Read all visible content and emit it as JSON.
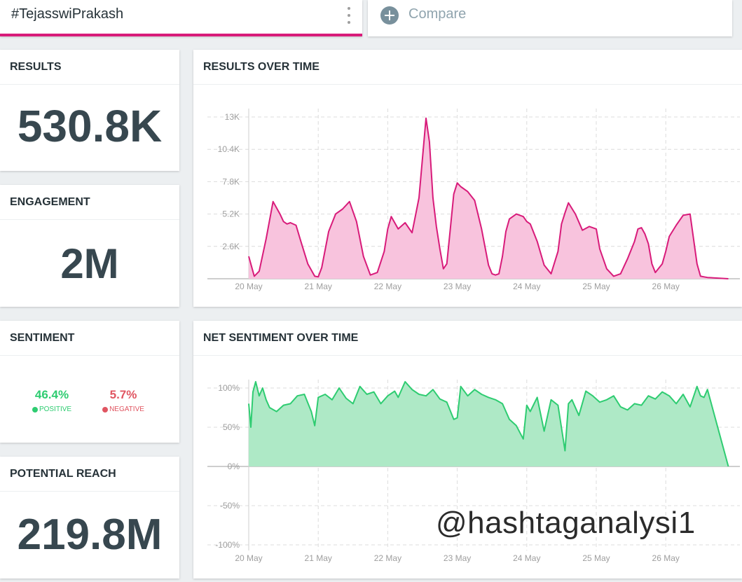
{
  "search": {
    "query": "#TejasswiPrakash",
    "compare_label": "Compare"
  },
  "results": {
    "title": "RESULTS",
    "value": "530.8K"
  },
  "engagement": {
    "title": "ENGAGEMENT",
    "value": "2M"
  },
  "sentiment": {
    "title": "SENTIMENT",
    "positive_pct": "46.4%",
    "positive_label": "POSITIVE",
    "negative_pct": "5.7%",
    "negative_label": "NEGATIVE"
  },
  "reach": {
    "title": "POTENTIAL REACH",
    "value": "219.8M"
  },
  "watermark": "@hashtaganalysi1",
  "colors": {
    "accent": "#d81b7a",
    "positive": "#2ecc71",
    "negative": "#e05561",
    "results_fill": "#f8c3dd",
    "sentiment_fill": "#aee9c6"
  },
  "chart_data": [
    {
      "type": "area",
      "title": "RESULTS OVER TIME",
      "x_tick_labels": [
        "20 May",
        "21 May",
        "22 May",
        "23 May",
        "24 May",
        "25 May",
        "26 May"
      ],
      "y_tick_labels": [
        "2.6K",
        "5.2K",
        "7.8K",
        "10.4K",
        "13K"
      ],
      "ylim": [
        0,
        13000
      ],
      "grid": true,
      "series_color": "#d81b7a",
      "fill_color": "#f8c3dd",
      "x_days": [
        0,
        0.08,
        0.15,
        0.25,
        0.35,
        0.45,
        0.5,
        0.55,
        0.6,
        0.68,
        0.75,
        0.85,
        0.95,
        1.0,
        1.05,
        1.15,
        1.25,
        1.35,
        1.45,
        1.55,
        1.65,
        1.75,
        1.85,
        1.95,
        2.0,
        2.05,
        2.15,
        2.25,
        2.35,
        2.45,
        2.55,
        2.6,
        2.65,
        2.7,
        2.75,
        2.8,
        2.85,
        2.9,
        2.95,
        3.0,
        3.05,
        3.15,
        3.25,
        3.35,
        3.45,
        3.5,
        3.55,
        3.6,
        3.65,
        3.7,
        3.75,
        3.85,
        3.95,
        4.0,
        4.05,
        4.15,
        4.25,
        4.35,
        4.45,
        4.5,
        4.55,
        4.6,
        4.7,
        4.8,
        4.9,
        5.0,
        5.05,
        5.15,
        5.25,
        5.35,
        5.45,
        5.55,
        5.6,
        5.65,
        5.7,
        5.75,
        5.8,
        5.85,
        5.95,
        6.0,
        6.05,
        6.15,
        6.25,
        6.35,
        6.45,
        6.5,
        6.55,
        6.6,
        6.9
      ],
      "values": [
        1800,
        200,
        600,
        3200,
        6200,
        5200,
        4600,
        4400,
        4500,
        4300,
        3000,
        1200,
        200,
        150,
        900,
        3800,
        5200,
        5600,
        6200,
        4600,
        1800,
        300,
        500,
        2200,
        4000,
        5000,
        4000,
        4500,
        3700,
        6500,
        12900,
        11000,
        6500,
        4200,
        2400,
        800,
        1200,
        4000,
        6800,
        7700,
        7400,
        7000,
        6300,
        4000,
        1100,
        400,
        300,
        400,
        1800,
        3800,
        4800,
        5200,
        5000,
        4600,
        4400,
        3000,
        1100,
        400,
        2200,
        4400,
        5300,
        6100,
        5200,
        3900,
        4200,
        4000,
        2400,
        800,
        200,
        400,
        1600,
        3000,
        4000,
        4100,
        3600,
        2800,
        1200,
        500,
        1200,
        2200,
        3400,
        4300,
        5100,
        5200,
        1200,
        200,
        150,
        100,
        0
      ]
    },
    {
      "type": "area",
      "title": "NET SENTIMENT OVER TIME",
      "x_tick_labels": [
        "20 May",
        "21 May",
        "22 May",
        "23 May",
        "24 May",
        "25 May",
        "26 May"
      ],
      "y_tick_labels": [
        "-100%",
        "-50%",
        "0%",
        "50%",
        "100%"
      ],
      "ylim": [
        -100,
        100
      ],
      "grid": true,
      "series_color": "#2ecc71",
      "fill_color": "#aee9c6",
      "x_days": [
        0,
        0.03,
        0.06,
        0.1,
        0.15,
        0.2,
        0.25,
        0.3,
        0.4,
        0.5,
        0.6,
        0.7,
        0.8,
        0.9,
        0.95,
        1.0,
        1.1,
        1.2,
        1.3,
        1.4,
        1.5,
        1.6,
        1.7,
        1.8,
        1.9,
        2.0,
        2.1,
        2.15,
        2.25,
        2.35,
        2.45,
        2.55,
        2.65,
        2.75,
        2.85,
        2.95,
        3.0,
        3.05,
        3.15,
        3.25,
        3.35,
        3.45,
        3.55,
        3.65,
        3.75,
        3.85,
        3.95,
        4.0,
        4.05,
        4.15,
        4.25,
        4.35,
        4.45,
        4.55,
        4.6,
        4.65,
        4.75,
        4.85,
        4.95,
        5.05,
        5.15,
        5.25,
        5.35,
        5.45,
        5.55,
        5.65,
        5.75,
        5.85,
        5.95,
        6.05,
        6.15,
        6.25,
        6.35,
        6.45,
        6.5,
        6.55,
        6.6,
        6.9
      ],
      "values": [
        80,
        50,
        95,
        108,
        90,
        100,
        85,
        75,
        70,
        78,
        80,
        90,
        92,
        70,
        52,
        88,
        92,
        85,
        100,
        87,
        80,
        102,
        92,
        95,
        80,
        90,
        96,
        88,
        108,
        98,
        92,
        90,
        98,
        86,
        82,
        60,
        62,
        102,
        90,
        98,
        92,
        88,
        85,
        80,
        60,
        52,
        35,
        78,
        70,
        88,
        45,
        85,
        78,
        20,
        80,
        85,
        65,
        96,
        90,
        82,
        85,
        90,
        76,
        72,
        80,
        78,
        90,
        86,
        95,
        90,
        80,
        92,
        76,
        102,
        90,
        88,
        98,
        0
      ]
    }
  ]
}
